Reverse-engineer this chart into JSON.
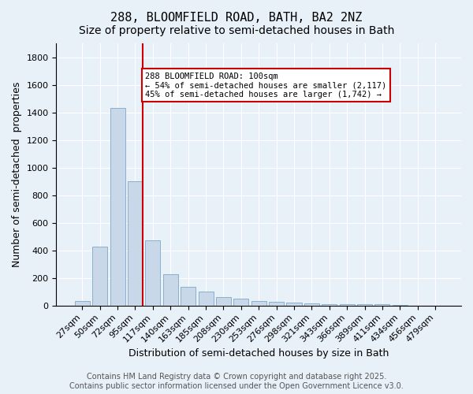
{
  "title": "288, BLOOMFIELD ROAD, BATH, BA2 2NZ",
  "subtitle": "Size of property relative to semi-detached houses in Bath",
  "xlabel": "Distribution of semi-detached houses by size in Bath",
  "ylabel": "Number of semi-detached  properties",
  "bar_labels": [
    "27sqm",
    "50sqm",
    "72sqm",
    "95sqm",
    "117sqm",
    "140sqm",
    "163sqm",
    "185sqm",
    "208sqm",
    "230sqm",
    "253sqm",
    "276sqm",
    "298sqm",
    "321sqm",
    "343sqm",
    "366sqm",
    "389sqm",
    "411sqm",
    "434sqm",
    "456sqm",
    "479sqm"
  ],
  "bar_values": [
    30,
    425,
    1430,
    900,
    475,
    225,
    135,
    100,
    60,
    50,
    35,
    25,
    20,
    15,
    10,
    8,
    10,
    8,
    2,
    1,
    1
  ],
  "bar_color": "#c8d8e8",
  "bar_edgecolor": "#8ab0cc",
  "vline_index": 3,
  "vline_color": "#cc0000",
  "annotation_text": "288 BLOOMFIELD ROAD: 100sqm\n← 54% of semi-detached houses are smaller (2,117)\n45% of semi-detached houses are larger (1,742) →",
  "annotation_box_edgecolor": "#cc0000",
  "annotation_box_facecolor": "#ffffff",
  "ylim": [
    0,
    1900
  ],
  "yticks": [
    0,
    200,
    400,
    600,
    800,
    1000,
    1200,
    1400,
    1600,
    1800
  ],
  "footnote": "Contains HM Land Registry data © Crown copyright and database right 2025.\nContains public sector information licensed under the Open Government Licence v3.0.",
  "bg_color": "#e8f0f8",
  "plot_bg_color": "#e8f0f8",
  "title_fontsize": 11,
  "subtitle_fontsize": 10,
  "label_fontsize": 9,
  "tick_fontsize": 8,
  "footnote_fontsize": 7
}
